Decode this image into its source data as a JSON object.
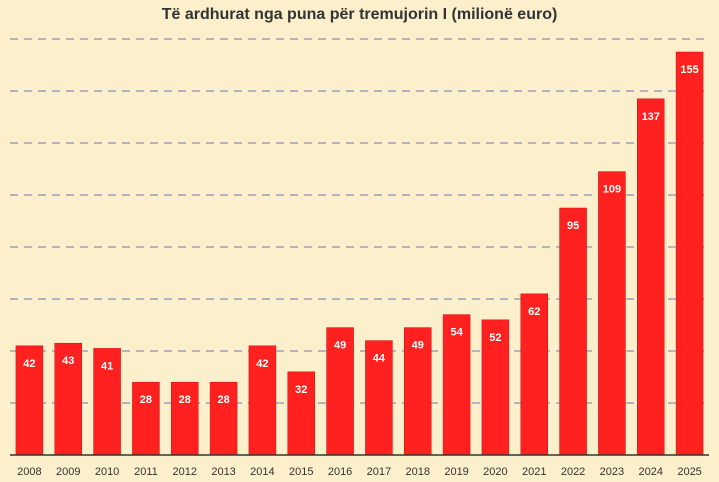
{
  "colors": {
    "background": "#fcefcc",
    "bar": "#ff2020",
    "bar_edge": "#d01010",
    "grid": "#9aa3c0",
    "axis": "#333333",
    "value_label": "#ffffff",
    "text": "#333333"
  },
  "chart_data": {
    "type": "bar",
    "title": "Të ardhurat nga puna për tremujorin I (milionë euro)",
    "xlabel": "",
    "ylabel": "",
    "ylim": [
      0,
      160
    ],
    "grid": true,
    "legend": "none",
    "categories": [
      "2008",
      "2009",
      "2010",
      "2011",
      "2012",
      "2013",
      "2014",
      "2015",
      "2016",
      "2017",
      "2018",
      "2019",
      "2020",
      "2021",
      "2022",
      "2023",
      "2024",
      "2025"
    ],
    "values": [
      42,
      43,
      41,
      28,
      28,
      28,
      42,
      32,
      49,
      44,
      49,
      54,
      52,
      62,
      95,
      109,
      137,
      155
    ]
  }
}
